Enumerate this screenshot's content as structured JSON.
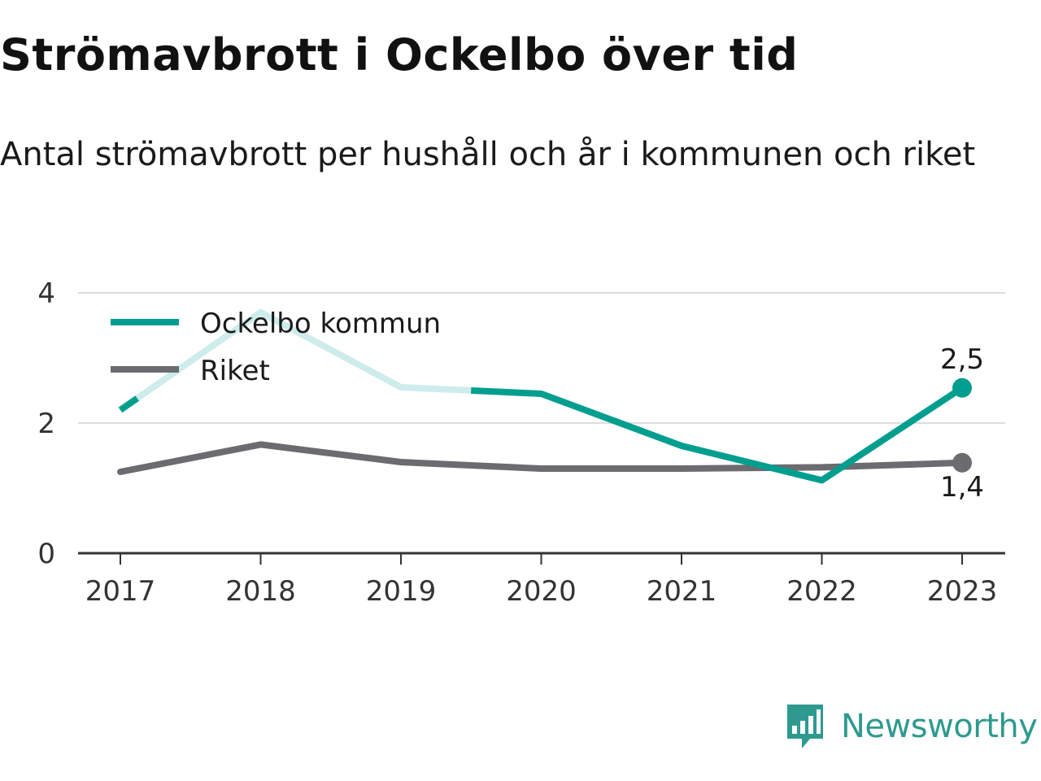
{
  "chart_data": {
    "type": "line",
    "title": "Strömavbrott i Ockelbo över tid",
    "subtitle": "Antal strömavbrott per hushåll och år i kommunen och riket",
    "categories": [
      "2017",
      "2018",
      "2019",
      "2020",
      "2021",
      "2022",
      "2023"
    ],
    "series": [
      {
        "name": "Ockelbo kommun",
        "values": [
          2.2,
          3.7,
          2.55,
          2.45,
          1.65,
          1.12,
          2.54
        ],
        "color": "#009e8f",
        "faded_color": "#cdeceb",
        "end_label": "2,5"
      },
      {
        "name": "Riket",
        "values": [
          1.25,
          1.67,
          1.4,
          1.3,
          1.3,
          1.32,
          1.39
        ],
        "color": "#6b6b70",
        "end_label": "1,4"
      }
    ],
    "ylim": [
      0,
      4
    ],
    "yticks": [
      "0",
      "2",
      "4"
    ],
    "ytick_values": [
      0,
      2,
      4
    ],
    "grid": true,
    "legend": "top-left"
  },
  "logo": {
    "text": "Newsworthy",
    "icon": "newsworthy-logo-icon",
    "color": "#2e9a8f"
  }
}
